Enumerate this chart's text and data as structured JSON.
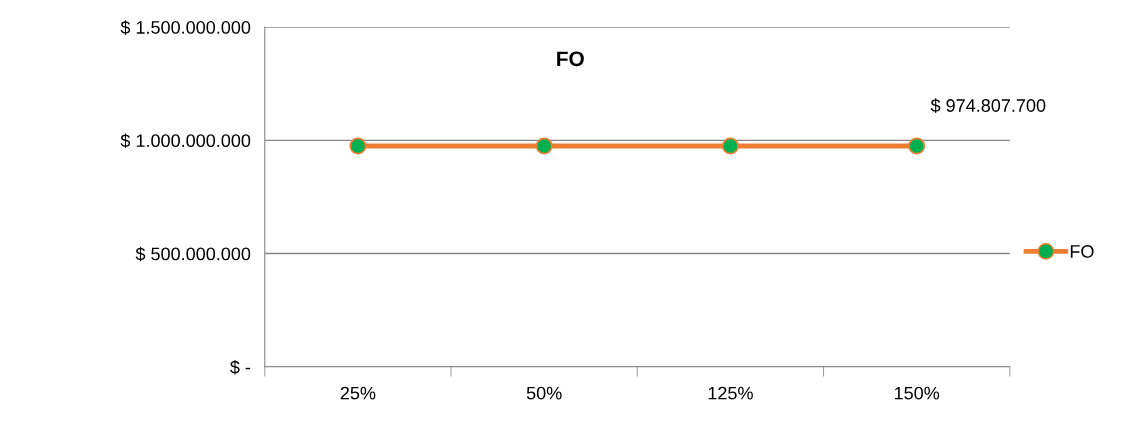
{
  "chart_data": {
    "type": "line",
    "title": "FO",
    "categories": [
      "25%",
      "50%",
      "125%",
      "150%"
    ],
    "series": [
      {
        "name": "FO",
        "color": "#ed7d31",
        "values": [
          974807700,
          974807700,
          974807700,
          974807700
        ],
        "value_labels": [
          null,
          null,
          null,
          "$ 974.807.700"
        ]
      }
    ],
    "ylim": [
      0,
      1500000000
    ],
    "yticks": [
      {
        "value": 0,
        "label": "$ -"
      },
      {
        "value": 500000000,
        "label": "$ 500.000.000"
      },
      {
        "value": 1000000000,
        "label": "$ 1.000.000.000"
      },
      {
        "value": 1500000000,
        "label": "$ 1.500.000.000"
      }
    ],
    "grid": "y",
    "legend": "right",
    "marker": "circle",
    "line_style": "solid"
  }
}
